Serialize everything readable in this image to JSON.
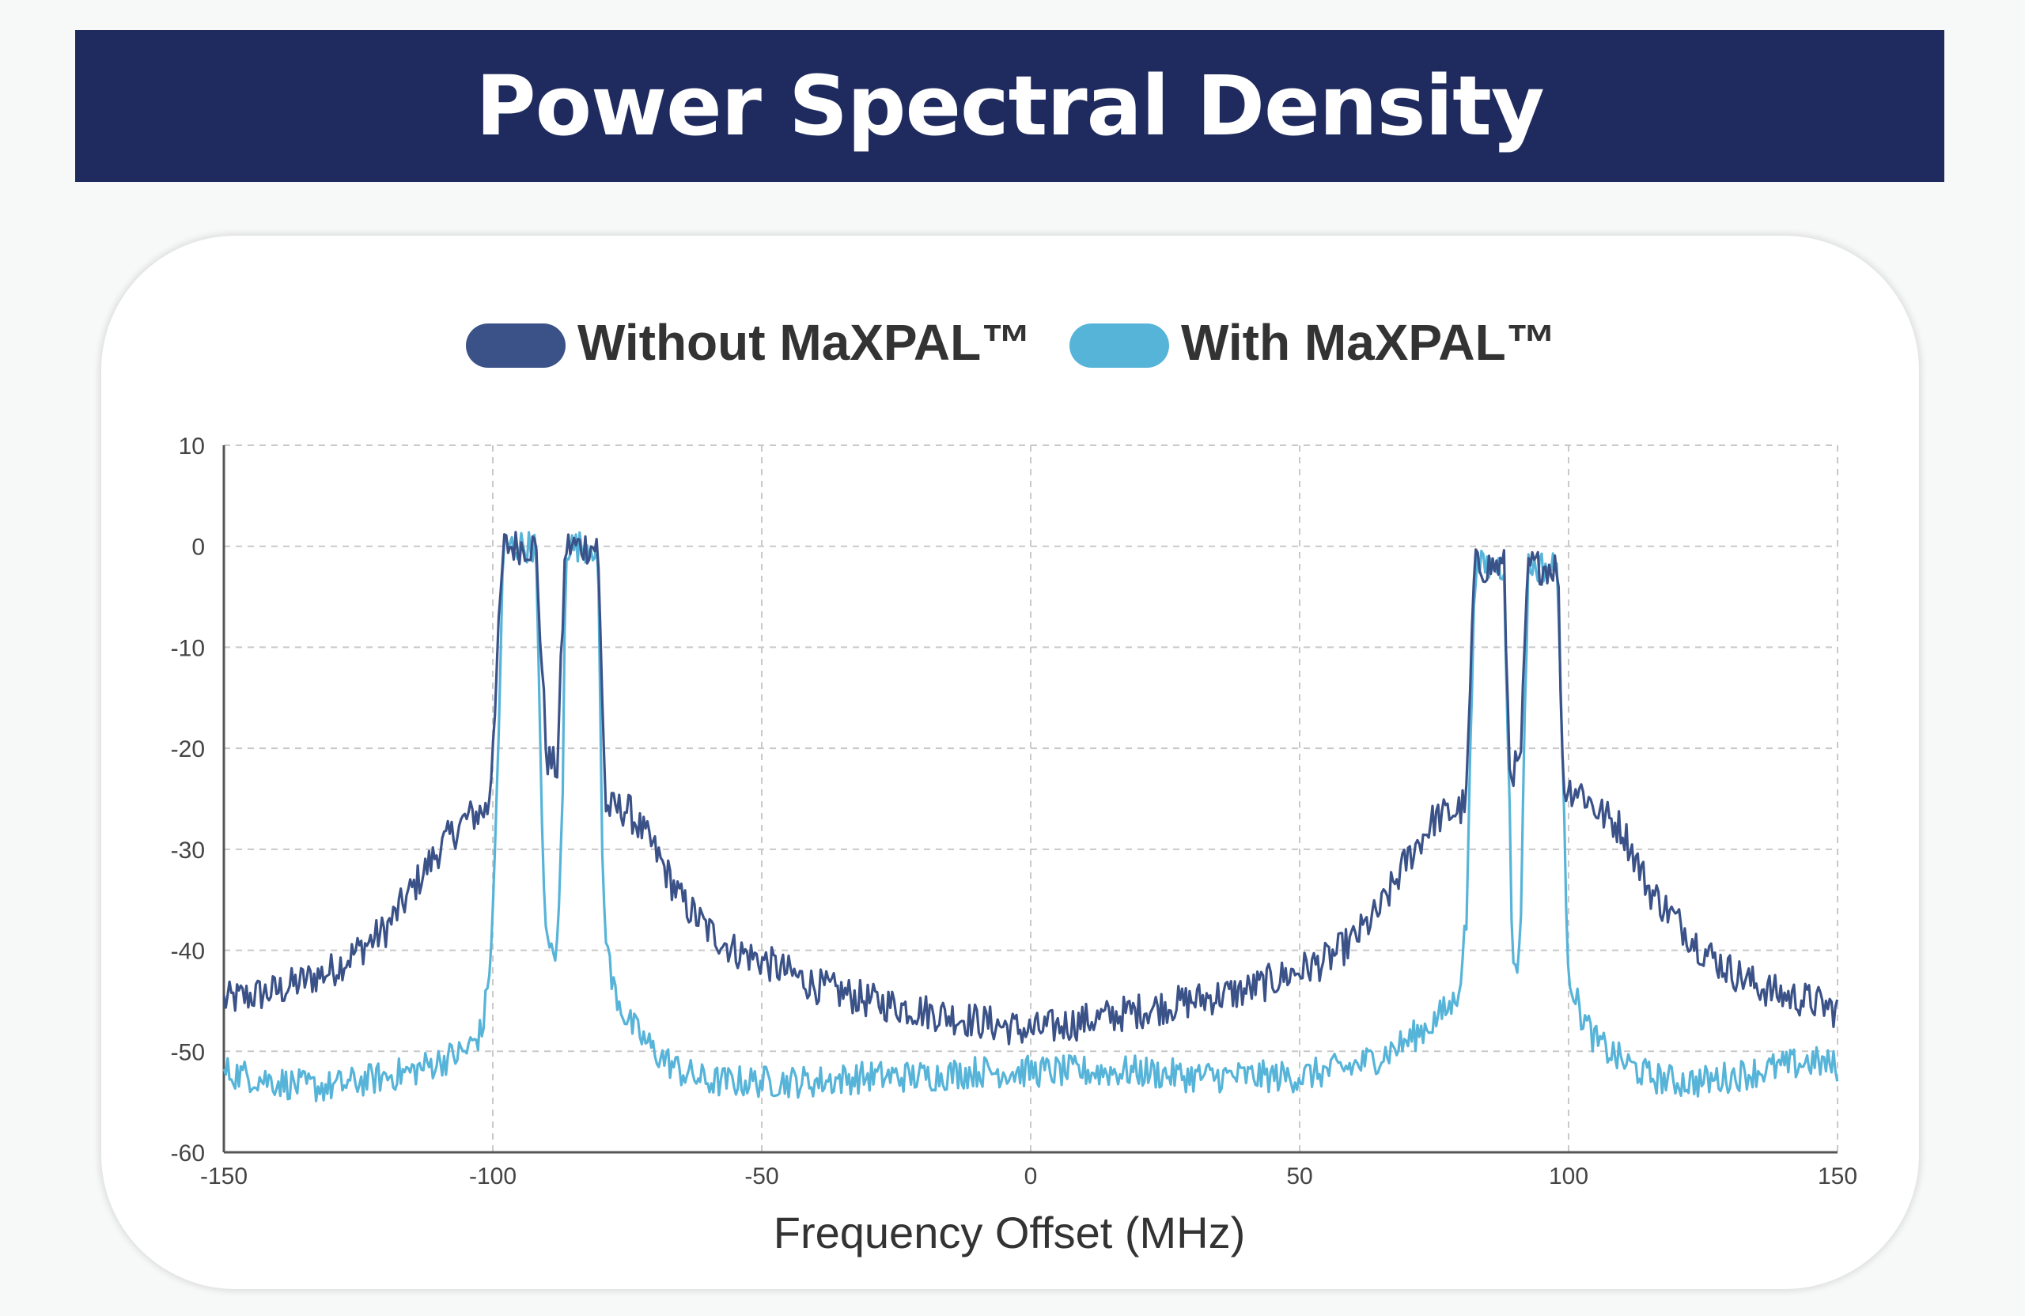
{
  "header": {
    "title": "Power Spectral Density"
  },
  "colors": {
    "header_bg": "#1f2b5e",
    "without": "#3b5288",
    "with": "#57b4d9"
  },
  "chart_data": {
    "type": "line",
    "title": "Power Spectral Density",
    "xlabel": "Frequency Offset (MHz)",
    "ylabel": "",
    "xlim": [
      -150,
      150
    ],
    "ylim": [
      -60,
      10
    ],
    "x_ticks": [
      -150,
      -100,
      -50,
      0,
      50,
      100,
      150
    ],
    "y_ticks": [
      10,
      0,
      -10,
      -20,
      -30,
      -40,
      -50,
      -60
    ],
    "x_tick_labels": [
      "-150",
      "-100",
      "-50",
      "0",
      "50",
      "100",
      "150"
    ],
    "y_tick_labels": [
      "10",
      "0",
      "-10",
      "-20",
      "-30",
      "-40",
      "-50",
      "-60"
    ],
    "grid": true,
    "legend": {
      "position": "top-center",
      "entries": [
        "Without MaXPAL™",
        "With MaXPAL™"
      ]
    },
    "series": [
      {
        "name": "Without MaXPAL™",
        "color": "#3b5288",
        "points": [
          [
            -150,
            -45
          ],
          [
            -145,
            -44.5
          ],
          [
            -140,
            -44
          ],
          [
            -135,
            -43
          ],
          [
            -130,
            -42
          ],
          [
            -125,
            -40
          ],
          [
            -120,
            -38
          ],
          [
            -115,
            -34
          ],
          [
            -110,
            -30
          ],
          [
            -105,
            -27
          ],
          [
            -101,
            -26
          ],
          [
            -100.5,
            -24
          ],
          [
            -98,
            0
          ],
          [
            -92,
            0
          ],
          [
            -90,
            -21
          ],
          [
            -88,
            -22
          ],
          [
            -86.5,
            0
          ],
          [
            -80.5,
            0
          ],
          [
            -79,
            -26
          ],
          [
            -75,
            -26
          ],
          [
            -70,
            -30
          ],
          [
            -65,
            -35
          ],
          [
            -60,
            -38
          ],
          [
            -55,
            -40
          ],
          [
            -50,
            -41
          ],
          [
            -40,
            -43.5
          ],
          [
            -30,
            -45
          ],
          [
            -20,
            -46
          ],
          [
            -10,
            -47
          ],
          [
            0,
            -48
          ],
          [
            10,
            -47
          ],
          [
            20,
            -46
          ],
          [
            30,
            -45
          ],
          [
            40,
            -44
          ],
          [
            50,
            -42
          ],
          [
            55,
            -41
          ],
          [
            60,
            -39
          ],
          [
            65,
            -36
          ],
          [
            70,
            -31
          ],
          [
            75,
            -27
          ],
          [
            80,
            -26
          ],
          [
            81,
            -25
          ],
          [
            82.5,
            -2
          ],
          [
            88,
            -2
          ],
          [
            89,
            -22
          ],
          [
            91,
            -22
          ],
          [
            92.5,
            -2
          ],
          [
            98,
            -2
          ],
          [
            99,
            -24
          ],
          [
            102,
            -24
          ],
          [
            105,
            -26
          ],
          [
            110,
            -28
          ],
          [
            115,
            -34
          ],
          [
            120,
            -37
          ],
          [
            125,
            -40
          ],
          [
            130,
            -42
          ],
          [
            135,
            -43.5
          ],
          [
            140,
            -44.5
          ],
          [
            145,
            -45
          ],
          [
            150,
            -46
          ]
        ]
      },
      {
        "name": "With MaXPAL™",
        "color": "#57b4d9",
        "points": [
          [
            -150,
            -52
          ],
          [
            -145,
            -52.5
          ],
          [
            -140,
            -53
          ],
          [
            -135,
            -53.5
          ],
          [
            -130,
            -53.5
          ],
          [
            -125,
            -53
          ],
          [
            -120,
            -52.5
          ],
          [
            -115,
            -52
          ],
          [
            -110,
            -51
          ],
          [
            -105,
            -50
          ],
          [
            -102,
            -48
          ],
          [
            -101,
            -44
          ],
          [
            -100,
            -37
          ],
          [
            -99,
            -20
          ],
          [
            -98,
            0
          ],
          [
            -92,
            0
          ],
          [
            -91,
            -25
          ],
          [
            -90,
            -40
          ],
          [
            -88,
            -40
          ],
          [
            -87,
            -25
          ],
          [
            -86.5,
            0
          ],
          [
            -80.5,
            0
          ],
          [
            -79.5,
            -35
          ],
          [
            -78,
            -43
          ],
          [
            -75,
            -47
          ],
          [
            -70,
            -50
          ],
          [
            -65,
            -52
          ],
          [
            -60,
            -53
          ],
          [
            -50,
            -53
          ],
          [
            -40,
            -53
          ],
          [
            -30,
            -52.5
          ],
          [
            -20,
            -52.5
          ],
          [
            -10,
            -52
          ],
          [
            0,
            -52
          ],
          [
            10,
            -52
          ],
          [
            20,
            -52
          ],
          [
            30,
            -52.5
          ],
          [
            40,
            -52.5
          ],
          [
            50,
            -52.5
          ],
          [
            55,
            -52
          ],
          [
            60,
            -51.5
          ],
          [
            65,
            -50.5
          ],
          [
            70,
            -49
          ],
          [
            75,
            -47
          ],
          [
            79,
            -45
          ],
          [
            80,
            -42
          ],
          [
            81,
            -37
          ],
          [
            82,
            -15
          ],
          [
            82.5,
            -2
          ],
          [
            88,
            -2
          ],
          [
            89,
            -25
          ],
          [
            89.5,
            -41
          ],
          [
            91,
            -41
          ],
          [
            91.5,
            -25
          ],
          [
            92.5,
            -2
          ],
          [
            98,
            -2
          ],
          [
            99,
            -25
          ],
          [
            100,
            -42
          ],
          [
            102,
            -46
          ],
          [
            105,
            -49
          ],
          [
            110,
            -51
          ],
          [
            115,
            -52.5
          ],
          [
            120,
            -53
          ],
          [
            125,
            -53
          ],
          [
            130,
            -52.5
          ],
          [
            135,
            -52
          ],
          [
            140,
            -51.5
          ],
          [
            145,
            -51
          ],
          [
            150,
            -51.5
          ]
        ]
      }
    ]
  }
}
